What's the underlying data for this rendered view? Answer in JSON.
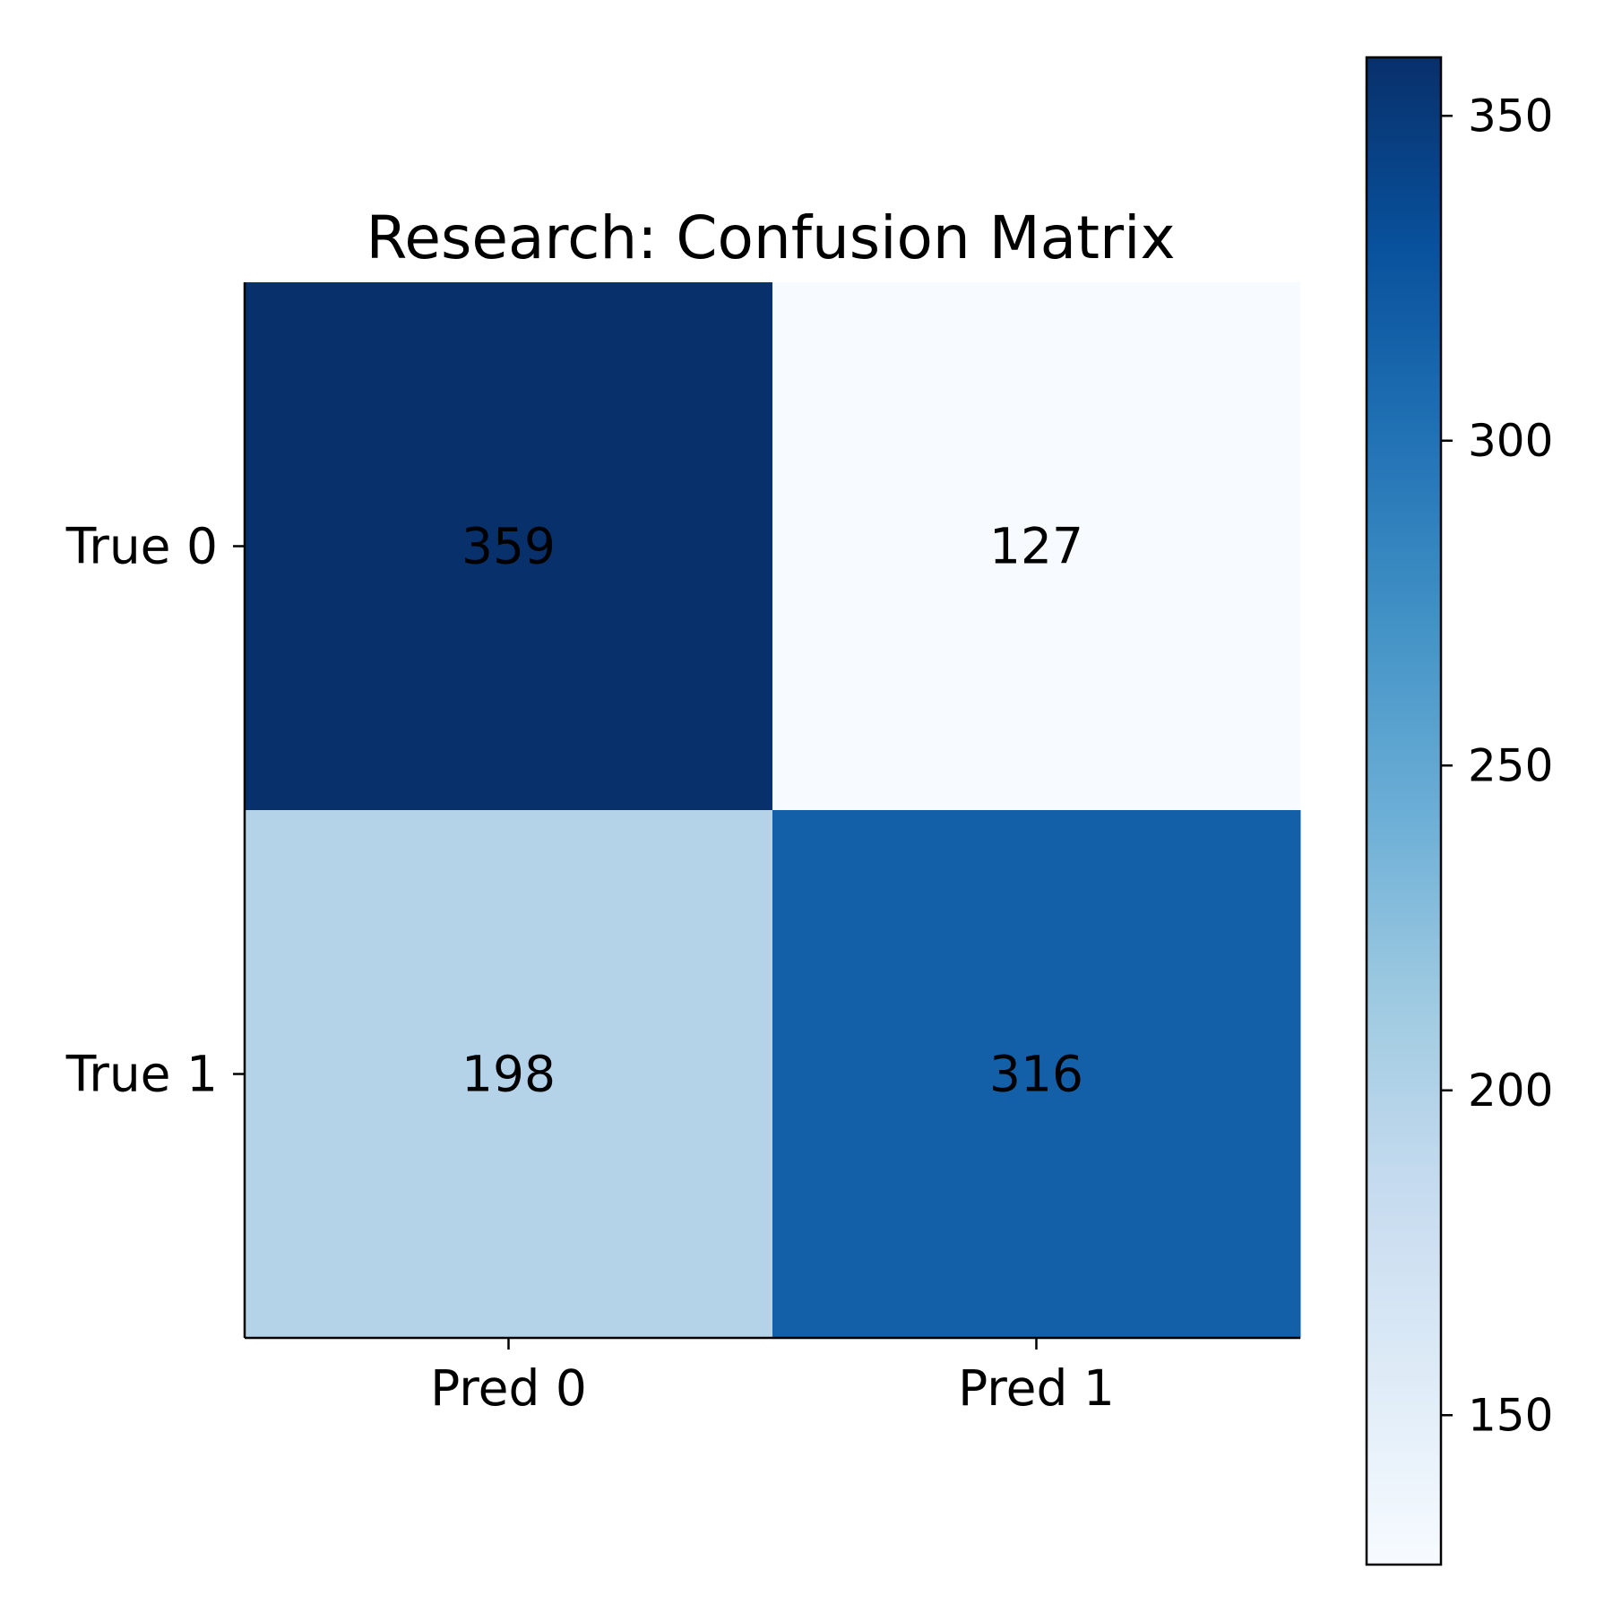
{
  "chart_data": {
    "type": "heatmap",
    "title": "Research: Confusion Matrix",
    "x_categories": [
      "Pred 0",
      "Pred 1"
    ],
    "y_categories": [
      "True 0",
      "True 1"
    ],
    "matrix": [
      [
        359,
        127
      ],
      [
        198,
        316
      ]
    ],
    "colorscale": "Blues",
    "colorbar": {
      "range": [
        127,
        359
      ],
      "ticks": [
        150,
        200,
        250,
        300,
        350
      ]
    },
    "grid": false
  }
}
